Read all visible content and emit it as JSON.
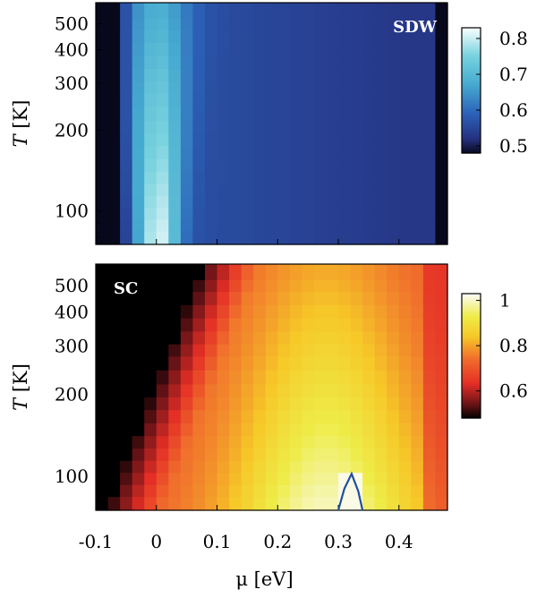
{
  "chart_data": [
    {
      "type": "heatmap",
      "panel_label": "SDW",
      "panel_label_color": "#ffffff",
      "xlabel": "μ [eV]",
      "ylabel_italic": "T",
      "ylabel_unit": "[K]",
      "x": [
        -0.09,
        -0.07,
        -0.05,
        -0.03,
        -0.01,
        0.01,
        0.03,
        0.05,
        0.07,
        0.09,
        0.11,
        0.13,
        0.15,
        0.17,
        0.19,
        0.21,
        0.23,
        0.25,
        0.27,
        0.29,
        0.31,
        0.33,
        0.35,
        0.37,
        0.39,
        0.41,
        0.43,
        0.45,
        0.47
      ],
      "y": [
        550,
        500,
        450,
        400,
        360,
        320,
        290,
        260,
        230,
        205,
        185,
        165,
        148,
        133,
        120,
        108,
        98,
        88,
        80
      ],
      "xlim": [
        -0.1,
        0.48
      ],
      "ylim": [
        75,
        600
      ],
      "yscale": "log",
      "y_ticks": [
        100,
        200,
        300,
        400,
        500
      ],
      "x_ticks": [
        "-0.1",
        "0",
        "0.1",
        "0.2",
        "0.3",
        "0.4"
      ],
      "x_tick_values": [
        -0.1,
        0,
        0.1,
        0.2,
        0.3,
        0.4
      ],
      "colorbar": {
        "min": 0.48,
        "max": 0.83,
        "ticks": [
          "0.5",
          "0.6",
          "0.7",
          "0.8"
        ],
        "tick_values": [
          0.5,
          0.6,
          0.7,
          0.8
        ],
        "colormap": "black-blue-cyan-white"
      }
    },
    {
      "type": "heatmap",
      "panel_label": "SC",
      "panel_label_color": "#ffffff",
      "xlabel": "μ [eV]",
      "ylabel_italic": "T",
      "ylabel_unit": "[K]",
      "x": [
        -0.09,
        -0.07,
        -0.05,
        -0.03,
        -0.01,
        0.01,
        0.03,
        0.05,
        0.07,
        0.09,
        0.11,
        0.13,
        0.15,
        0.17,
        0.19,
        0.21,
        0.23,
        0.25,
        0.27,
        0.29,
        0.31,
        0.33,
        0.35,
        0.37,
        0.39,
        0.41,
        0.43,
        0.45,
        0.47
      ],
      "y": [
        550,
        500,
        450,
        400,
        360,
        320,
        290,
        260,
        230,
        205,
        185,
        165,
        148,
        133,
        120,
        108,
        98,
        88,
        80
      ],
      "xlim": [
        -0.1,
        0.48
      ],
      "ylim": [
        75,
        600
      ],
      "yscale": "log",
      "y_ticks": [
        100,
        200,
        300,
        400,
        500
      ],
      "x_ticks": [
        "-0.1",
        "0",
        "0.1",
        "0.2",
        "0.3",
        "0.4"
      ],
      "x_tick_values": [
        -0.1,
        0,
        0.1,
        0.2,
        0.3,
        0.4
      ],
      "colorbar": {
        "min": 0.48,
        "max": 1.03,
        "ticks": [
          "0.6",
          "0.8",
          "1"
        ],
        "tick_values": [
          0.6,
          0.8,
          1.0
        ],
        "colormap": "black-red-yellow-white"
      },
      "contour": {
        "level": 1.0,
        "color": "#1f4fa0",
        "points": [
          [
            0.3,
            75
          ],
          [
            0.31,
            90
          ],
          [
            0.322,
            102
          ],
          [
            0.333,
            88
          ],
          [
            0.34,
            75
          ]
        ]
      }
    }
  ]
}
